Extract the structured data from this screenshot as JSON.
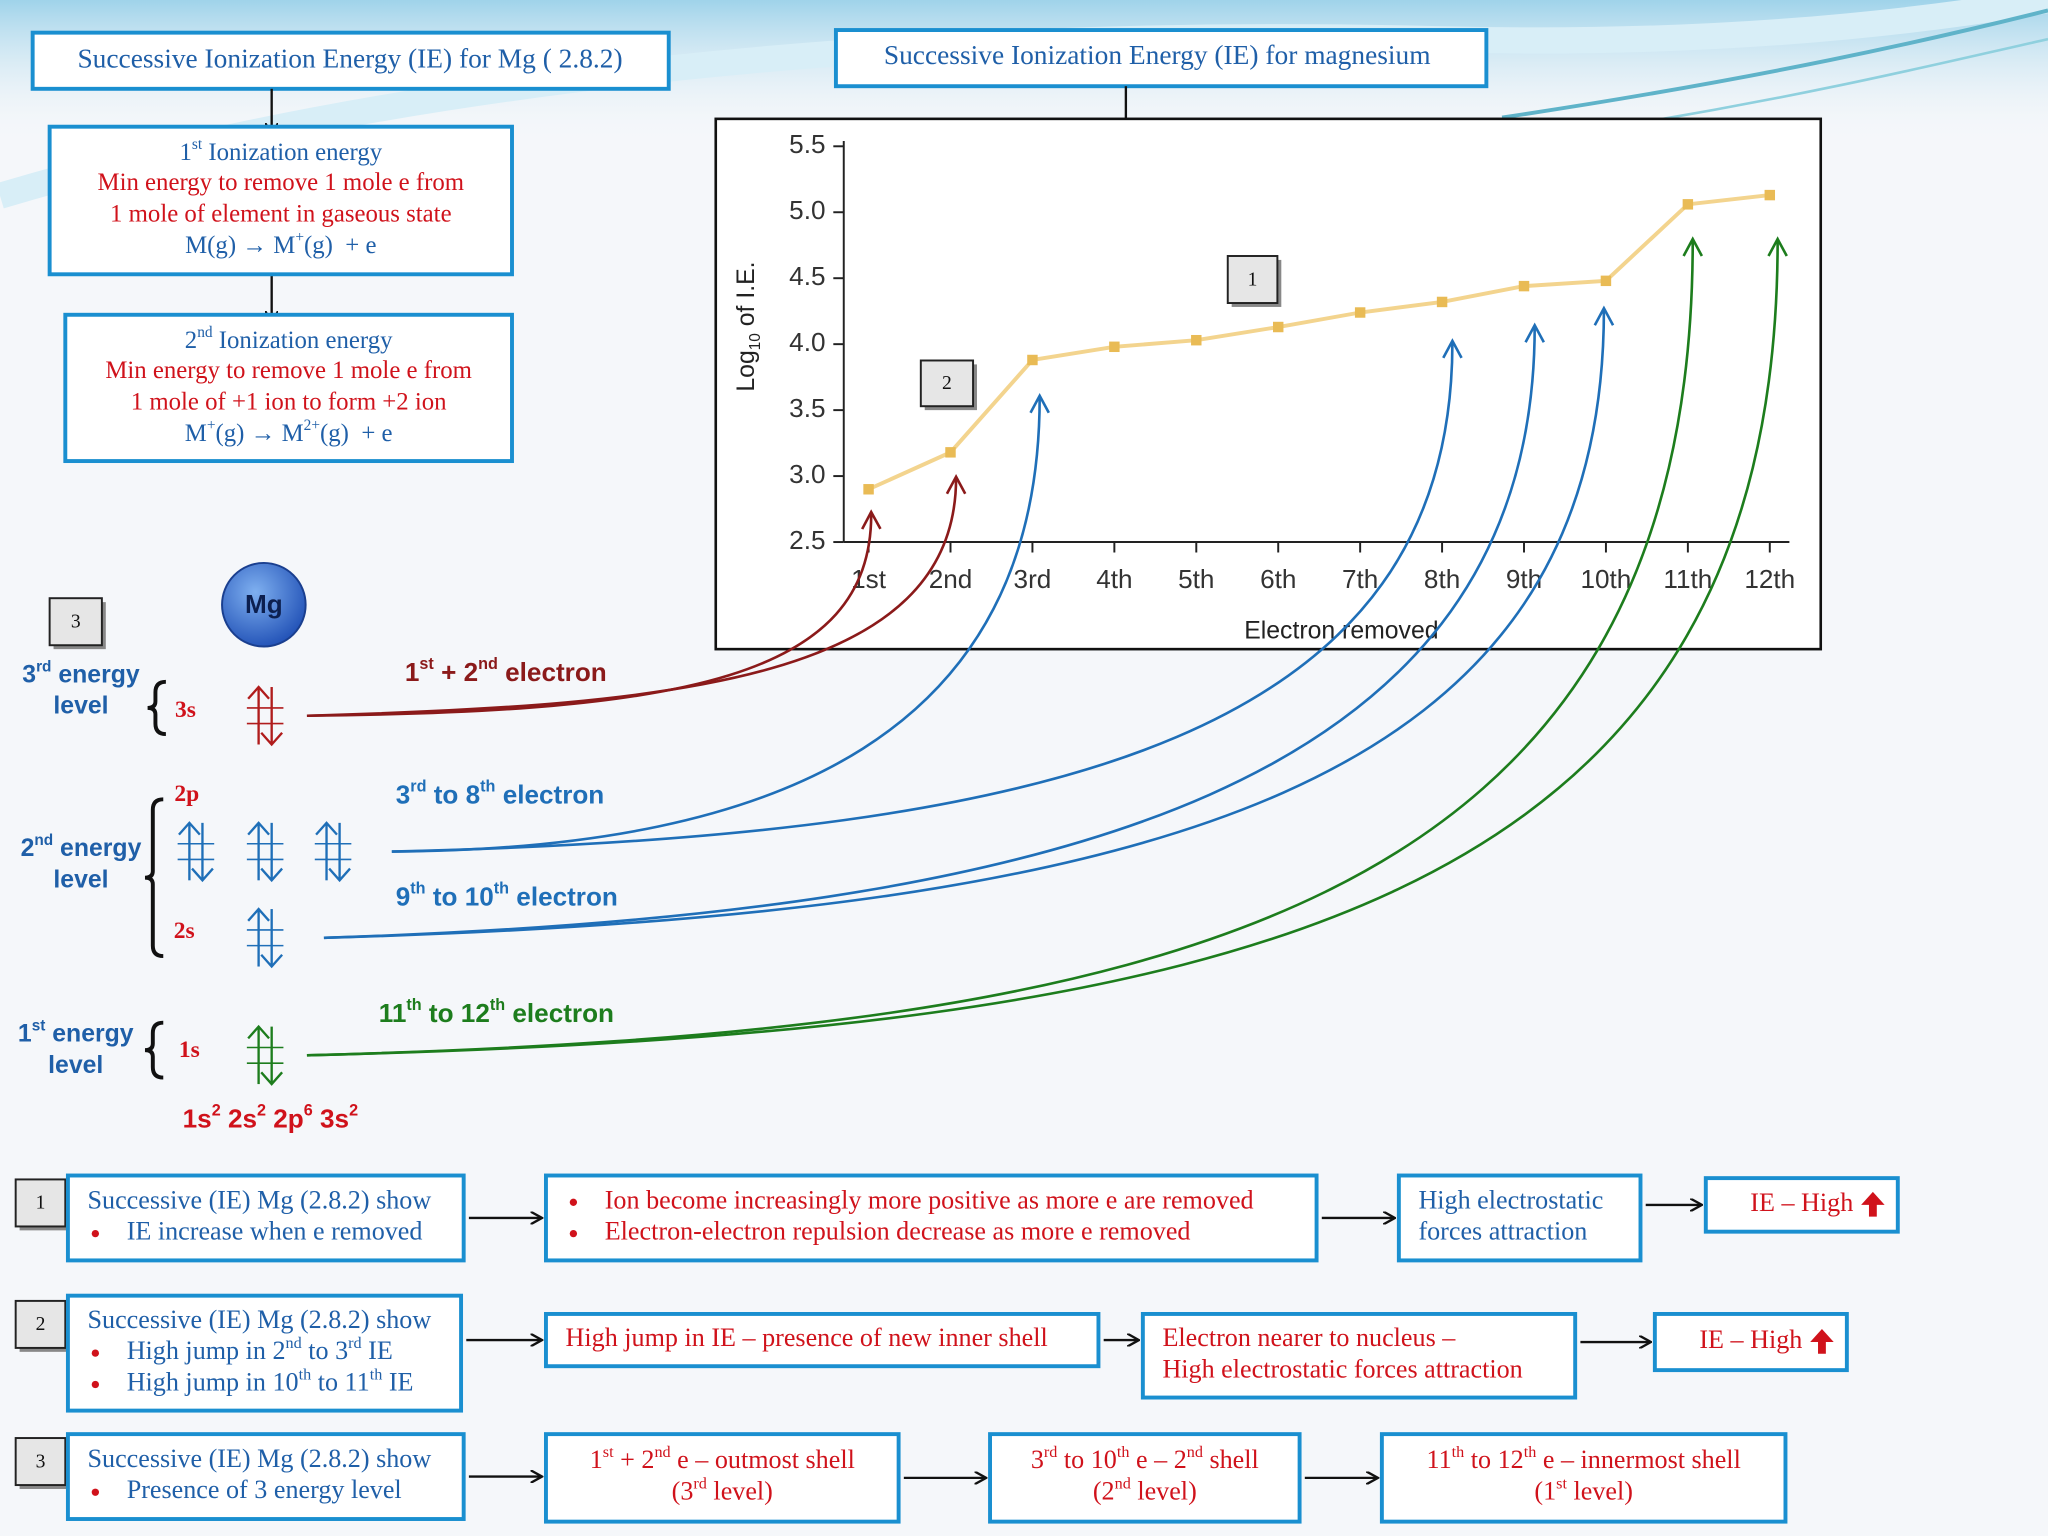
{
  "header": {
    "left": "Successive Ionization Energy (IE) for Mg ( 2.8.2)",
    "right": "Successive Ionization Energy (IE) for magnesium"
  },
  "first_ie": {
    "title": [
      "1",
      {
        "sup": "st"
      },
      " Ionization energy"
    ],
    "lines": [
      [
        "Min energy to remove 1 mole e from"
      ],
      [
        "1 mole of element in gaseous state"
      ]
    ],
    "equation": [
      "M(g) → M",
      {
        "sup": "+"
      },
      "(g)  + e"
    ]
  },
  "second_ie": {
    "title": [
      "2",
      {
        "sup": "nd"
      },
      " Ionization energy"
    ],
    "lines": [
      [
        "Min energy to remove 1 mole e from"
      ],
      [
        "1 mole of +1 ion to form +2 ion"
      ]
    ],
    "equation": [
      "M",
      {
        "sup": "+"
      },
      "(g) → M",
      {
        "sup": "2+"
      },
      "(g)  + e"
    ]
  },
  "chart_data": {
    "type": "line",
    "categories": [
      "1st",
      "2nd",
      "3rd",
      "4th",
      "5th",
      "6th",
      "7th",
      "8th",
      "9th",
      "10th",
      "11th",
      "12th"
    ],
    "values": [
      2.9,
      3.18,
      3.88,
      3.98,
      4.03,
      4.13,
      4.24,
      4.32,
      4.44,
      4.48,
      5.06,
      5.13
    ],
    "color": "#f3d48e",
    "marker_color": "#e9bb55",
    "ylim": [
      2.5,
      5.5
    ],
    "yticks": [
      2.5,
      {
        "value": 3,
        "label": "3.0"
      },
      3.5,
      {
        "value": 4,
        "label": "4.0"
      },
      4.5,
      {
        "value": 5,
        "label": "5.0"
      },
      5.5
    ],
    "y_label": [
      "Log",
      {
        "sub": "10"
      },
      " of I.E."
    ],
    "x_label": "Electron removed",
    "callouts": [
      "1",
      "2"
    ]
  },
  "energy_diagram": {
    "atom": "Mg",
    "callout": "3",
    "levels": [
      {
        "lines": [
          [
            "3",
            {
              "sup": "rd"
            },
            " energy"
          ],
          [
            "level"
          ]
        ]
      },
      {
        "lines": [
          [
            "2",
            {
              "sup": "nd"
            },
            " energy"
          ],
          [
            "level"
          ]
        ]
      },
      {
        "lines": [
          [
            "1",
            {
              "sup": "st"
            },
            " energy"
          ],
          [
            "level"
          ]
        ]
      }
    ],
    "sublevels": [
      "3s",
      "2p",
      "2s",
      "1s"
    ],
    "electron_groups": [
      {
        "text": [
          "1",
          {
            "sup": "st"
          },
          " + 2",
          {
            "sup": "nd"
          },
          " electron"
        ],
        "color": "#8b1a1a"
      },
      {
        "text": [
          "3",
          {
            "sup": "rd"
          },
          " to 8",
          {
            "sup": "th"
          },
          " electron"
        ],
        "color": "#1f6fb8"
      },
      {
        "text": [
          "9",
          {
            "sup": "th"
          },
          " to 10",
          {
            "sup": "th"
          },
          " electron"
        ],
        "color": "#1f6fb8"
      },
      {
        "text": [
          "11",
          {
            "sup": "th"
          },
          " to 12",
          {
            "sup": "th"
          },
          " electron"
        ],
        "color": "#1d7d1d"
      }
    ],
    "configuration": [
      "1s",
      {
        "sup": "2"
      },
      " 2s",
      {
        "sup": "2"
      },
      " 2p",
      {
        "sup": "6"
      },
      " 3s",
      {
        "sup": "2"
      }
    ]
  },
  "summary": [
    {
      "number": "1",
      "boxes": [
        {
          "color": "#1f5fa8",
          "lines": [
            {
              "text": [
                "Successive (IE) Mg (2.8.2) show"
              ]
            },
            {
              "bullet": true,
              "text": [
                "IE increase when e removed"
              ]
            }
          ]
        },
        {
          "color": "#d0121b",
          "lines": [
            {
              "bullet": true,
              "text": [
                "Ion become increasingly more positive as more e are removed"
              ]
            },
            {
              "bullet": true,
              "text": [
                "Electron-electron repulsion decrease as more e removed"
              ]
            }
          ]
        },
        {
          "color": "#1f5fa8",
          "lines": [
            {
              "text": [
                "High electrostatic"
              ]
            },
            {
              "text": [
                "forces attraction"
              ]
            }
          ]
        },
        {
          "color": "#d0121b",
          "lines": [
            {
              "text": [
                "IE – High"
              ]
            }
          ]
        }
      ]
    },
    {
      "number": "2",
      "boxes": [
        {
          "color": "#1f5fa8",
          "lines": [
            {
              "text": [
                "Successive (IE) Mg (2.8.2) show"
              ]
            },
            {
              "bullet": true,
              "text": [
                "High jump in 2",
                {
                  "sup": "nd"
                },
                " to 3",
                {
                  "sup": "rd"
                },
                " IE"
              ]
            },
            {
              "bullet": true,
              "text": [
                "High jump in 10",
                {
                  "sup": "th"
                },
                " to 11",
                {
                  "sup": "th"
                },
                " IE"
              ]
            }
          ]
        },
        {
          "color": "#d0121b",
          "lines": [
            {
              "text": [
                "High jump in IE – presence of new inner shell"
              ]
            }
          ]
        },
        {
          "color": "#d0121b",
          "lines": [
            {
              "text": [
                "Electron nearer to nucleus –"
              ]
            },
            {
              "text": [
                "High electrostatic forces attraction"
              ]
            }
          ]
        },
        {
          "color": "#d0121b",
          "lines": [
            {
              "text": [
                "IE – High"
              ]
            }
          ]
        }
      ]
    },
    {
      "number": "3",
      "boxes": [
        {
          "color": "#1f5fa8",
          "lines": [
            {
              "text": [
                "Successive (IE) Mg (2.8.2) show"
              ]
            },
            {
              "bullet": true,
              "text": [
                "Presence of 3 energy level"
              ]
            }
          ]
        },
        {
          "color": "#d0121b",
          "lines": [
            {
              "text": [
                "1",
                {
                  "sup": "st"
                },
                " + 2",
                {
                  "sup": "nd"
                },
                " e – outmost shell"
              ]
            },
            {
              "text": [
                "(3",
                {
                  "sup": "rd"
                },
                " level)"
              ]
            }
          ]
        },
        {
          "color": "#d0121b",
          "lines": [
            {
              "text": [
                "3",
                {
                  "sup": "rd"
                },
                " to 10",
                {
                  "sup": "th"
                },
                " e – 2",
                {
                  "sup": "nd"
                },
                " shell"
              ]
            },
            {
              "text": [
                "(2",
                {
                  "sup": "nd"
                },
                " level)"
              ]
            }
          ]
        },
        {
          "color": "#d0121b",
          "lines": [
            {
              "text": [
                "11",
                {
                  "sup": "th"
                },
                " to 12",
                {
                  "sup": "th"
                },
                " e – innermost shell"
              ]
            },
            {
              "text": [
                "(1",
                {
                  "sup": "st"
                },
                " level)"
              ]
            }
          ]
        }
      ]
    }
  ]
}
